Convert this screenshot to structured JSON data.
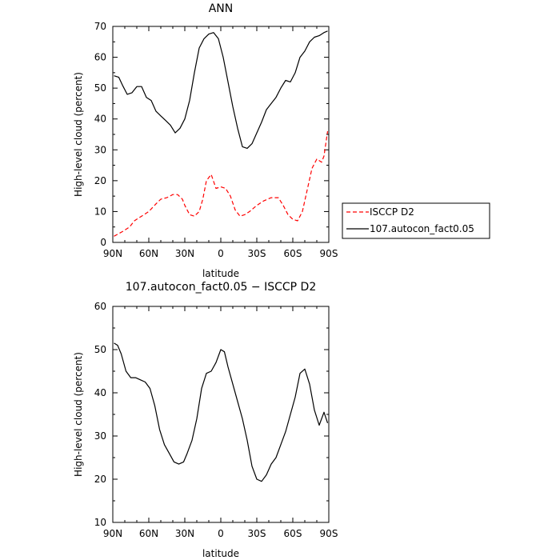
{
  "chart_data": [
    {
      "type": "line",
      "title": "ANN",
      "xlabel": "latitude",
      "ylabel": "High-level cloud (percent)",
      "xlim": [
        90,
        -90
      ],
      "ylim": [
        0,
        70
      ],
      "xticks": [
        90,
        60,
        30,
        0,
        -30,
        -60,
        -90
      ],
      "xtick_labels": [
        "90N",
        "60N",
        "30N",
        "0",
        "30S",
        "60S",
        "90S"
      ],
      "yticks": [
        0,
        10,
        20,
        30,
        40,
        50,
        60,
        70
      ],
      "ytick_labels": [
        "0",
        "10",
        "20",
        "30",
        "40",
        "50",
        "60",
        "70"
      ],
      "legend_position": "right",
      "series": [
        {
          "name": "ISCCP D2",
          "color": "#ff0000",
          "dash": "dashed",
          "x": [
            89,
            82,
            76,
            72,
            66,
            60,
            54,
            50,
            45,
            40,
            36,
            32,
            30,
            26,
            22,
            18,
            15,
            12,
            8,
            4,
            0,
            -4,
            -8,
            -12,
            -16,
            -20,
            -24,
            -30,
            -36,
            -42,
            -48,
            -52,
            -56,
            -60,
            -64,
            -68,
            -72,
            -76,
            -80,
            -84,
            -86,
            -89
          ],
          "y": [
            2,
            3.5,
            5,
            7,
            8.5,
            10,
            12.5,
            14,
            14.5,
            15.5,
            15.5,
            14,
            12,
            9,
            8.5,
            10,
            14,
            20,
            22,
            17.5,
            18,
            17.5,
            15,
            10.5,
            8.5,
            9,
            10,
            12,
            13.5,
            14.5,
            14.5,
            12,
            9,
            7.5,
            7,
            10,
            17,
            24,
            27,
            26,
            28,
            36
          ]
        },
        {
          "name": "107.autocon_fact0.05",
          "color": "#000000",
          "dash": "solid",
          "x": [
            89,
            85,
            82,
            78,
            74,
            70,
            66,
            62,
            58,
            54,
            50,
            46,
            42,
            38,
            34,
            30,
            26,
            22,
            18,
            14,
            10,
            6,
            2,
            -2,
            -6,
            -10,
            -14,
            -18,
            -22,
            -26,
            -30,
            -34,
            -38,
            -42,
            -46,
            -50,
            -54,
            -58,
            -62,
            -66,
            -70,
            -74,
            -78,
            -82,
            -86,
            -89
          ],
          "y": [
            54,
            53.5,
            51,
            48,
            48.5,
            50.5,
            50.5,
            47,
            46,
            42.5,
            41,
            39.5,
            38,
            35.5,
            37,
            40,
            46,
            55,
            63,
            66,
            67.5,
            68,
            66,
            60,
            52,
            44,
            37,
            31,
            30.5,
            32,
            35.5,
            39,
            43,
            45,
            47,
            50,
            52.5,
            52,
            55,
            60,
            62,
            65,
            66.5,
            67,
            68,
            68.5
          ]
        }
      ]
    },
    {
      "type": "line",
      "title": "107.autocon_fact0.05 − ISCCP D2",
      "xlabel": "latitude",
      "ylabel": "High-level cloud (percent)",
      "xlim": [
        90,
        -90
      ],
      "ylim": [
        10,
        60
      ],
      "xticks": [
        90,
        60,
        30,
        0,
        -30,
        -60,
        -90
      ],
      "xtick_labels": [
        "90N",
        "60N",
        "30N",
        "0",
        "30S",
        "60S",
        "90S"
      ],
      "yticks": [
        10,
        20,
        30,
        40,
        50,
        60
      ],
      "ytick_labels": [
        "10",
        "20",
        "30",
        "40",
        "50",
        "60"
      ],
      "series": [
        {
          "color": "#000000",
          "dash": "solid",
          "x": [
            89,
            86,
            83,
            79,
            75,
            71,
            67,
            63,
            59,
            55,
            51,
            47,
            43,
            39,
            35,
            31,
            28,
            24,
            20,
            16,
            12,
            8,
            4,
            0,
            -3,
            -6,
            -10,
            -14,
            -18,
            -22,
            -26,
            -30,
            -34,
            -38,
            -42,
            -46,
            -50,
            -54,
            -58,
            -62,
            -66,
            -70,
            -74,
            -78,
            -82,
            -86,
            -89
          ],
          "y": [
            51.5,
            51,
            49,
            45,
            43.5,
            43.5,
            43,
            42.5,
            41,
            37,
            31.5,
            28,
            26,
            24,
            23.5,
            24,
            26,
            29,
            34,
            41,
            44.5,
            45,
            47,
            50,
            49.5,
            46,
            42,
            38,
            34,
            29,
            23,
            20,
            19.5,
            21,
            23.5,
            25,
            28,
            31,
            35,
            39,
            44.5,
            45.5,
            42,
            36,
            32.5,
            35.5,
            33
          ]
        }
      ]
    }
  ]
}
